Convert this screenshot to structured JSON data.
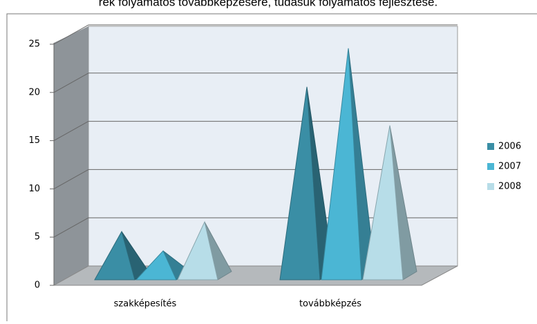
{
  "caption": "rek folyamatos továbbképzésére, tudásuk folyamatos fejlesztése.",
  "chart_data": {
    "type": "pyramid3d",
    "categories": [
      "szakképesítés",
      "továbbképzés"
    ],
    "series": [
      {
        "name": "2006",
        "color": "#3a8ea5",
        "values": [
          5,
          20
        ]
      },
      {
        "name": "2007",
        "color": "#4bb6d4",
        "values": [
          3,
          24
        ]
      },
      {
        "name": "2008",
        "color": "#b7dde8",
        "values": [
          6,
          16
        ]
      }
    ],
    "ylim": [
      0,
      25
    ],
    "yticks": [
      0,
      5,
      10,
      15,
      20,
      25
    ],
    "grid": true,
    "legend": "right"
  }
}
